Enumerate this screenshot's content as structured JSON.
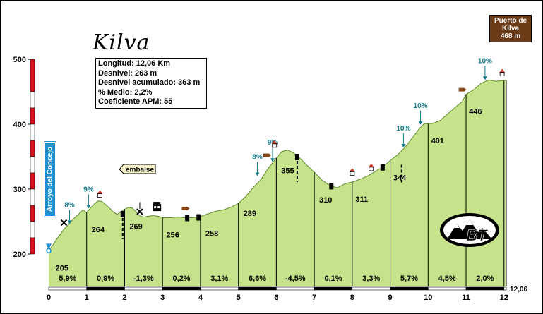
{
  "title": "Kilva",
  "info": {
    "longitud": "Longitud: 12,06 Km",
    "desnivel": "Desnivel: 263 m",
    "acumulado": "Desnivel acumulado: 363 m",
    "medio": "% Medio: 2,2%",
    "apm": "Coeficiente APM: 55"
  },
  "summit": {
    "line1": "Puerto de",
    "line2": "Kilva",
    "line3": "468 m"
  },
  "start_label": "Arroyo del Concejo",
  "embalse_label": "embalse",
  "logo_text": "BT",
  "km_end_label": "12,06",
  "colors": {
    "fill": "#c6e28b",
    "profile_line": "#5d8a2a",
    "km_line": "#000000",
    "grade_label": "#127a8a",
    "sign_brown": "#6b3a17",
    "sign_blue": "#1f8fd0"
  },
  "chart_data": {
    "type": "area",
    "xlim": [
      0,
      12.06
    ],
    "ylim": [
      150,
      520
    ],
    "y_ticks": [
      200,
      300,
      400,
      500
    ],
    "x_ticks": [
      0,
      1,
      2,
      3,
      4,
      5,
      6,
      7,
      8,
      9,
      10,
      11,
      12
    ],
    "profile": [
      [
        0,
        205
      ],
      [
        0.1,
        213
      ],
      [
        0.2,
        222
      ],
      [
        0.3,
        230
      ],
      [
        0.4,
        238
      ],
      [
        0.5,
        244
      ],
      [
        0.6,
        251
      ],
      [
        0.7,
        257
      ],
      [
        0.8,
        262
      ],
      [
        0.9,
        268
      ],
      [
        1.0,
        264
      ],
      [
        1.1,
        271
      ],
      [
        1.2,
        277
      ],
      [
        1.3,
        282
      ],
      [
        1.4,
        281
      ],
      [
        1.5,
        276
      ],
      [
        1.6,
        271
      ],
      [
        1.7,
        265
      ],
      [
        1.8,
        261
      ],
      [
        1.9,
        265
      ],
      [
        2.0,
        269
      ],
      [
        2.1,
        272
      ],
      [
        2.2,
        271
      ],
      [
        2.3,
        265
      ],
      [
        2.4,
        259
      ],
      [
        2.5,
        257
      ],
      [
        2.6,
        258
      ],
      [
        2.7,
        259
      ],
      [
        2.8,
        259
      ],
      [
        2.9,
        258
      ],
      [
        3.0,
        256
      ],
      [
        3.2,
        256
      ],
      [
        3.4,
        257
      ],
      [
        3.6,
        256
      ],
      [
        3.8,
        256
      ],
      [
        4.0,
        258
      ],
      [
        4.2,
        262
      ],
      [
        4.4,
        266
      ],
      [
        4.6,
        268
      ],
      [
        4.8,
        272
      ],
      [
        5.0,
        278
      ],
      [
        5.2,
        289
      ],
      [
        5.4,
        303
      ],
      [
        5.6,
        315
      ],
      [
        5.8,
        333
      ],
      [
        6.0,
        348
      ],
      [
        6.15,
        358
      ],
      [
        6.3,
        360
      ],
      [
        6.45,
        356
      ],
      [
        6.6,
        349
      ],
      [
        6.8,
        337
      ],
      [
        7.0,
        326
      ],
      [
        7.2,
        314
      ],
      [
        7.4,
        306
      ],
      [
        7.6,
        302
      ],
      [
        7.8,
        308
      ],
      [
        8.0,
        311
      ],
      [
        8.2,
        315
      ],
      [
        8.4,
        320
      ],
      [
        8.6,
        327
      ],
      [
        8.8,
        334
      ],
      [
        9.0,
        344
      ],
      [
        9.2,
        353
      ],
      [
        9.4,
        365
      ],
      [
        9.6,
        380
      ],
      [
        9.75,
        392
      ],
      [
        9.9,
        401
      ],
      [
        10.1,
        401
      ],
      [
        10.3,
        405
      ],
      [
        10.5,
        415
      ],
      [
        10.7,
        425
      ],
      [
        10.9,
        435
      ],
      [
        11.0,
        446
      ],
      [
        11.2,
        453
      ],
      [
        11.4,
        463
      ],
      [
        11.6,
        468
      ],
      [
        11.8,
        466
      ],
      [
        12.06,
        468
      ]
    ],
    "point_labels": [
      {
        "x": 0.35,
        "y": 205,
        "text": "205"
      },
      {
        "x": 1.3,
        "y": 264,
        "text": "264"
      },
      {
        "x": 2.3,
        "y": 269,
        "text": "269"
      },
      {
        "x": 3.27,
        "y": 256,
        "text": "256"
      },
      {
        "x": 4.3,
        "y": 258,
        "text": "258"
      },
      {
        "x": 5.3,
        "y": 289,
        "text": "289"
      },
      {
        "x": 6.3,
        "y": 355,
        "text": "355"
      },
      {
        "x": 7.3,
        "y": 310,
        "text": "310"
      },
      {
        "x": 8.25,
        "y": 311,
        "text": "311"
      },
      {
        "x": 9.25,
        "y": 344,
        "text": "344"
      },
      {
        "x": 10.25,
        "y": 401,
        "text": "401"
      },
      {
        "x": 11.25,
        "y": 446,
        "text": "446"
      }
    ],
    "segment_grades": [
      "5,9%",
      "0,9%",
      "-1,3%",
      "0,2%",
      "3,1%",
      "6,6%",
      "-4,5%",
      "0,1%",
      "3,3%",
      "5,7%",
      "4,5%",
      "2,0%"
    ],
    "max_grades": [
      {
        "x": 0.55,
        "y": 244,
        "text": "8%"
      },
      {
        "x": 1.05,
        "y": 268,
        "text": "9%"
      },
      {
        "x": 5.5,
        "y": 318,
        "text": "8%"
      },
      {
        "x": 5.9,
        "y": 340,
        "text": "9%"
      },
      {
        "x": 9.35,
        "y": 362,
        "text": "10%"
      },
      {
        "x": 9.8,
        "y": 397,
        "text": "10%"
      },
      {
        "x": 11.5,
        "y": 466,
        "text": "10%"
      }
    ]
  }
}
